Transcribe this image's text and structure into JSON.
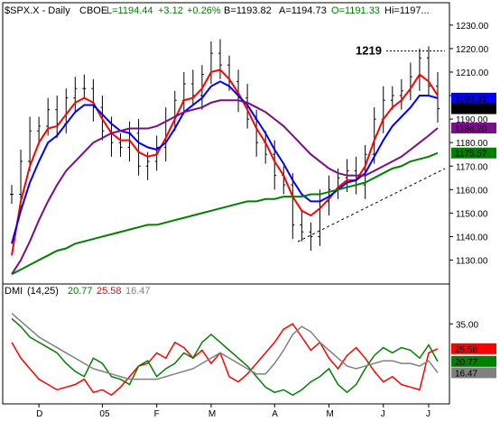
{
  "header": {
    "symbol": "$SPX.X - Daily",
    "exchange": "CBOE",
    "last": "L=1194.44",
    "change": "+3.12",
    "change_pct": "+0.26%",
    "bid": "B=1193.82",
    "ask": "A=1194.73",
    "open": "O=1191.33",
    "high": "Hi=1197..."
  },
  "dmi_header": {
    "label": "DMI",
    "params": "(14,25)",
    "v1": "20.77",
    "v2": "25.58",
    "v3": "16.47"
  },
  "annotation": "1219",
  "colors": {
    "price": "#000000",
    "ema_red": "#ff0000",
    "ema_blue": "#0000ff",
    "sma_purple": "#7b0c8a",
    "sma_green": "#008000",
    "dmi_red": "#ff0000",
    "dmi_green": "#008000",
    "dmi_gray": "#808080",
    "up": "#00a000",
    "down": "#ff0000"
  },
  "chart_data": [
    {
      "type": "line",
      "title": "$SPX.X - Daily",
      "x_ticks": [
        "D",
        "05",
        "F",
        "M",
        "A",
        "M",
        "J",
        "J"
      ],
      "y_ticks": [
        1130,
        1140,
        1150,
        1160,
        1170,
        1180,
        1190,
        1200,
        1210,
        1220,
        1230
      ],
      "ylim": [
        1121,
        1233
      ],
      "grid": false,
      "price_x": [
        0,
        4,
        8,
        12,
        16,
        20,
        24,
        28,
        32,
        36,
        40,
        44,
        48,
        52,
        56,
        60,
        64,
        68,
        72,
        76,
        80,
        84,
        88,
        92,
        96,
        100,
        104,
        108,
        112,
        116,
        120,
        124,
        128,
        132,
        136,
        140,
        144,
        148,
        152,
        156,
        160,
        164,
        168,
        172,
        176,
        180,
        184,
        188
      ],
      "price_close": [
        1158,
        1172,
        1185,
        1187,
        1194,
        1188,
        1199,
        1203,
        1203,
        1195,
        1185,
        1180,
        1178,
        1184,
        1170,
        1172,
        1178,
        1189,
        1198,
        1205,
        1200,
        1209,
        1218,
        1213,
        1206,
        1199,
        1190,
        1180,
        1175,
        1166,
        1162,
        1145,
        1142,
        1140,
        1155,
        1160,
        1165,
        1168,
        1162,
        1175,
        1190,
        1198,
        1200,
        1202,
        1208,
        1216,
        1204,
        1194.44
      ],
      "series": [
        {
          "name": "",
          "color": "red",
          "values": [
            1132,
            1155,
            1170,
            1180,
            1186,
            1187,
            1192,
            1197,
            1199,
            1197,
            1190,
            1184,
            1181,
            1181,
            1176,
            1174,
            1175,
            1182,
            1190,
            1198,
            1199,
            1203,
            1210,
            1211,
            1207,
            1201,
            1194,
            1186,
            1180,
            1172,
            1166,
            1157,
            1151,
            1149,
            1152,
            1156,
            1161,
            1164,
            1164,
            1170,
            1181,
            1190,
            1195,
            1198,
            1203,
            1209,
            1206,
            1200
          ]
        },
        {
          "name": "",
          "color": "blue",
          "values": [
            1137,
            1151,
            1163,
            1172,
            1180,
            1183,
            1188,
            1193,
            1196,
            1196,
            1192,
            1188,
            1185,
            1184,
            1180,
            1178,
            1177,
            1180,
            1186,
            1193,
            1196,
            1199,
            1204,
            1206,
            1204,
            1200,
            1196,
            1190,
            1184,
            1177,
            1171,
            1164,
            1158,
            1155,
            1155,
            1157,
            1160,
            1163,
            1164,
            1167,
            1174,
            1181,
            1187,
            1191,
            1195,
            1200,
            1200,
            1198.91
          ]
        },
        {
          "name": "",
          "color": "purple",
          "values": [
            1124,
            1130,
            1138,
            1147,
            1155,
            1162,
            1168,
            1172,
            1176,
            1180,
            1182,
            1184,
            1185,
            1186,
            1186,
            1186,
            1187,
            1189,
            1191,
            1193,
            1194,
            1195,
            1197,
            1198,
            1198,
            1198,
            1197,
            1195,
            1193,
            1190,
            1187,
            1183,
            1179,
            1175,
            1172,
            1169,
            1167,
            1166,
            1166,
            1166,
            1168,
            1170,
            1172,
            1174,
            1177,
            1180,
            1183,
            1186.2
          ]
        },
        {
          "name": "",
          "color": "green",
          "values": [
            1124,
            1126,
            1128,
            1130,
            1132,
            1134,
            1135,
            1137,
            1138,
            1139,
            1140,
            1141,
            1142,
            1143,
            1144,
            1145,
            1145,
            1146,
            1147,
            1148,
            1149,
            1150,
            1151,
            1152,
            1153,
            1154,
            1155,
            1155,
            1156,
            1156,
            1157,
            1157,
            1157,
            1158,
            1158,
            1159,
            1160,
            1161,
            1162,
            1163,
            1165,
            1167,
            1169,
            1170,
            1172,
            1173,
            1174,
            1175.57
          ]
        }
      ],
      "price_labels": [
        {
          "value": 1198.91,
          "text": "1198.91",
          "bg": "#0000ff",
          "fg": "#ffffff"
        },
        {
          "value": 1194.44,
          "text": "1194.44",
          "bg": "#000000",
          "fg": "#ffffff"
        },
        {
          "value": 1186.2,
          "text": "1186.20",
          "bg": "#7b0c8a",
          "fg": "#ffffff"
        },
        {
          "value": 1175.57,
          "text": "1175.57",
          "bg": "#008000",
          "fg": "#ffffff"
        }
      ],
      "annotation_level": 1219
    },
    {
      "type": "line",
      "title": "DMI (14,25)",
      "y_ticks": [
        35.0
      ],
      "ylim": [
        5,
        45
      ],
      "series": [
        {
          "name": "",
          "color": "red",
          "values": [
            28,
            22,
            18,
            14,
            12,
            10,
            11,
            12,
            14,
            9,
            10,
            8,
            11,
            15,
            19,
            20,
            24,
            22,
            28,
            26,
            22,
            25,
            20,
            24,
            15,
            13,
            16,
            20,
            24,
            28,
            33,
            35,
            30,
            25,
            28,
            22,
            18,
            23,
            26,
            22,
            17,
            13,
            15,
            12,
            11,
            10,
            24,
            25.58
          ]
        },
        {
          "name": "",
          "color": "green",
          "values": [
            37,
            34,
            30,
            28,
            26,
            24,
            20,
            17,
            15,
            22,
            20,
            15,
            14,
            12,
            19,
            21,
            15,
            18,
            20,
            24,
            22,
            28,
            31,
            28,
            25,
            22,
            19,
            15,
            11,
            9,
            10,
            8,
            10,
            13,
            15,
            18,
            12,
            9,
            12,
            18,
            23,
            26,
            24,
            26,
            25,
            22,
            27,
            20.77
          ]
        },
        {
          "name": "",
          "color": "gray",
          "values": [
            39,
            36,
            33,
            30,
            28,
            26,
            24,
            22,
            20,
            18,
            17,
            16,
            15,
            14,
            14,
            14,
            14,
            15,
            16,
            17,
            18,
            20,
            22,
            24,
            22,
            20,
            18,
            16,
            16,
            20,
            25,
            31,
            34,
            32,
            28,
            25,
            22,
            19,
            18,
            19,
            20,
            21,
            21,
            20,
            20,
            19,
            21,
            16.47
          ]
        }
      ],
      "value_labels": [
        {
          "value": 25.58,
          "text": "25.58",
          "bg": "#ff0000",
          "fg": "#ffffff"
        },
        {
          "value": 20.77,
          "text": "20.77",
          "bg": "#008000",
          "fg": "#ffffff"
        },
        {
          "value": 16.47,
          "text": "16.47",
          "bg": "#808080",
          "fg": "#ffffff"
        }
      ]
    }
  ]
}
